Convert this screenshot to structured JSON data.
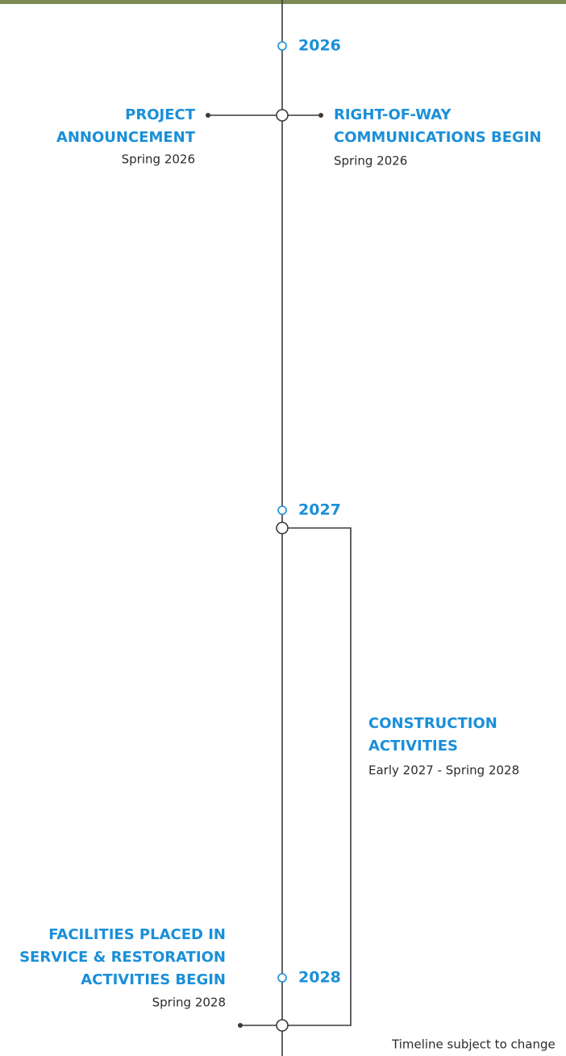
{
  "timeline": {
    "years": [
      {
        "label": "2026"
      },
      {
        "label": "2027"
      },
      {
        "label": "2028"
      }
    ],
    "events": [
      {
        "title_lines": [
          "PROJECT",
          "ANNOUNCEMENT"
        ],
        "date": "Spring 2026"
      },
      {
        "title_lines": [
          "RIGHT-OF-WAY",
          "COMMUNICATIONS BEGIN"
        ],
        "date": "Spring 2026"
      },
      {
        "title_lines": [
          "CONSTRUCTION",
          "ACTIVITIES"
        ],
        "date": "Early 2027 - Spring 2028"
      },
      {
        "title_lines": [
          "FACILITIES PLACED IN",
          "SERVICE & RESTORATION",
          "ACTIVITIES BEGIN"
        ],
        "date": "Spring 2028"
      }
    ],
    "note": "Timeline subject to change"
  }
}
